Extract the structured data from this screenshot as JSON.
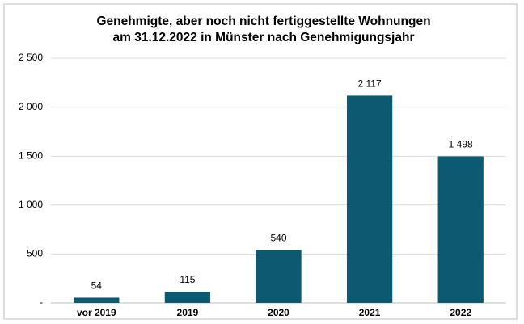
{
  "chart_data": {
    "type": "bar",
    "title": [
      "Genehmigte, aber noch nicht fertiggestellte Wohnungen",
      "am 31.12.2022 in Münster nach Genehmigungsjahr"
    ],
    "categories": [
      "vor 2019",
      "2019",
      "2020",
      "2021",
      "2022"
    ],
    "values": [
      54,
      115,
      540,
      2117,
      1498
    ],
    "value_labels": [
      "54",
      "115",
      "540",
      "2 117",
      "1 498"
    ],
    "color": "#0c5a72",
    "ylim": [
      0,
      2500
    ],
    "yticks": [
      {
        "value": 0,
        "label": "-"
      },
      500,
      {
        "value": 1000,
        "label": "1 000"
      },
      {
        "value": 1500,
        "label": "1 500"
      },
      {
        "value": 2000,
        "label": "2 000"
      },
      {
        "value": 2500,
        "label": "2 500"
      }
    ],
    "grid": true
  }
}
